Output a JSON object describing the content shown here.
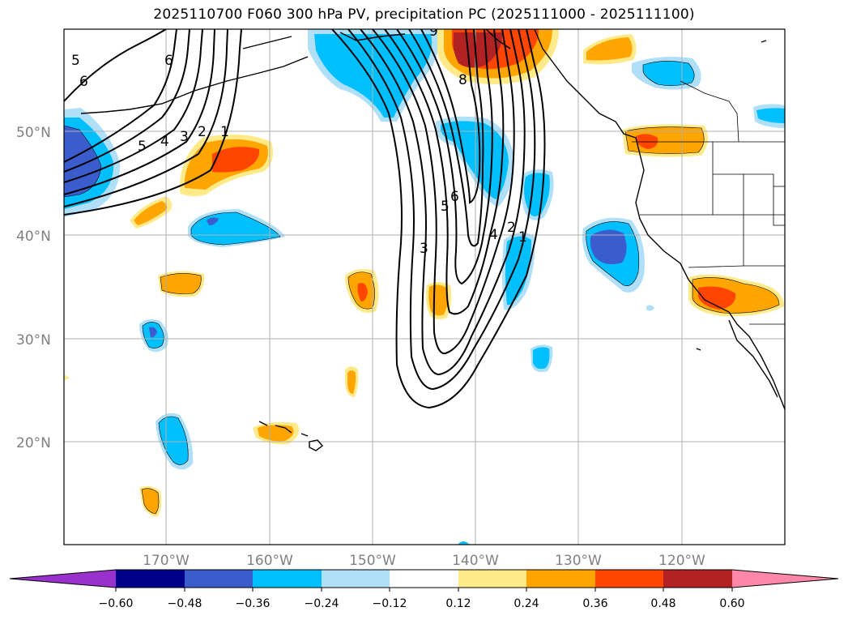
{
  "title": "2025110700 F060 300 hPa PV, precipitation PC (2025111000 - 2025111100)",
  "colors": {
    "neg_lt_060": "#9932cc",
    "neg_060_048": "#00008b",
    "neg_048_036": "#3a5ccc",
    "neg_036_024": "#00bfff",
    "neg_024_012": "#afe0f8",
    "neutral": "#ffffff",
    "pos_012_024": "#ffea8a",
    "pos_024_036": "#ffa500",
    "pos_036_048": "#ff4500",
    "pos_048_060": "#b22222",
    "pos_gt_060": "#ff88aa"
  },
  "map": {
    "lat_labels": [
      "50°N",
      "40°N",
      "30°N",
      "20°N"
    ],
    "lon_labels": [
      "170°W",
      "160°W",
      "150°W",
      "140°W",
      "130°W",
      "120°W"
    ]
  },
  "colorbar": {
    "tick_labels": [
      "−0.60",
      "−0.48",
      "−0.36",
      "−0.24",
      "−0.12",
      "0.12",
      "0.24",
      "0.36",
      "0.48",
      "0.60"
    ]
  },
  "contour_labels": {
    "west_5a": "5",
    "west_6a": "6",
    "west_6b": "6",
    "west_5b": "5",
    "west_4": "4",
    "west_3": "3",
    "west_2": "2",
    "west_1": "1",
    "trough_3": "3",
    "trough_5": "5",
    "trough_6": "6",
    "trough_4": "4",
    "trough_2": "2",
    "trough_1": "1",
    "north_8": "8",
    "north_9": "9"
  }
}
